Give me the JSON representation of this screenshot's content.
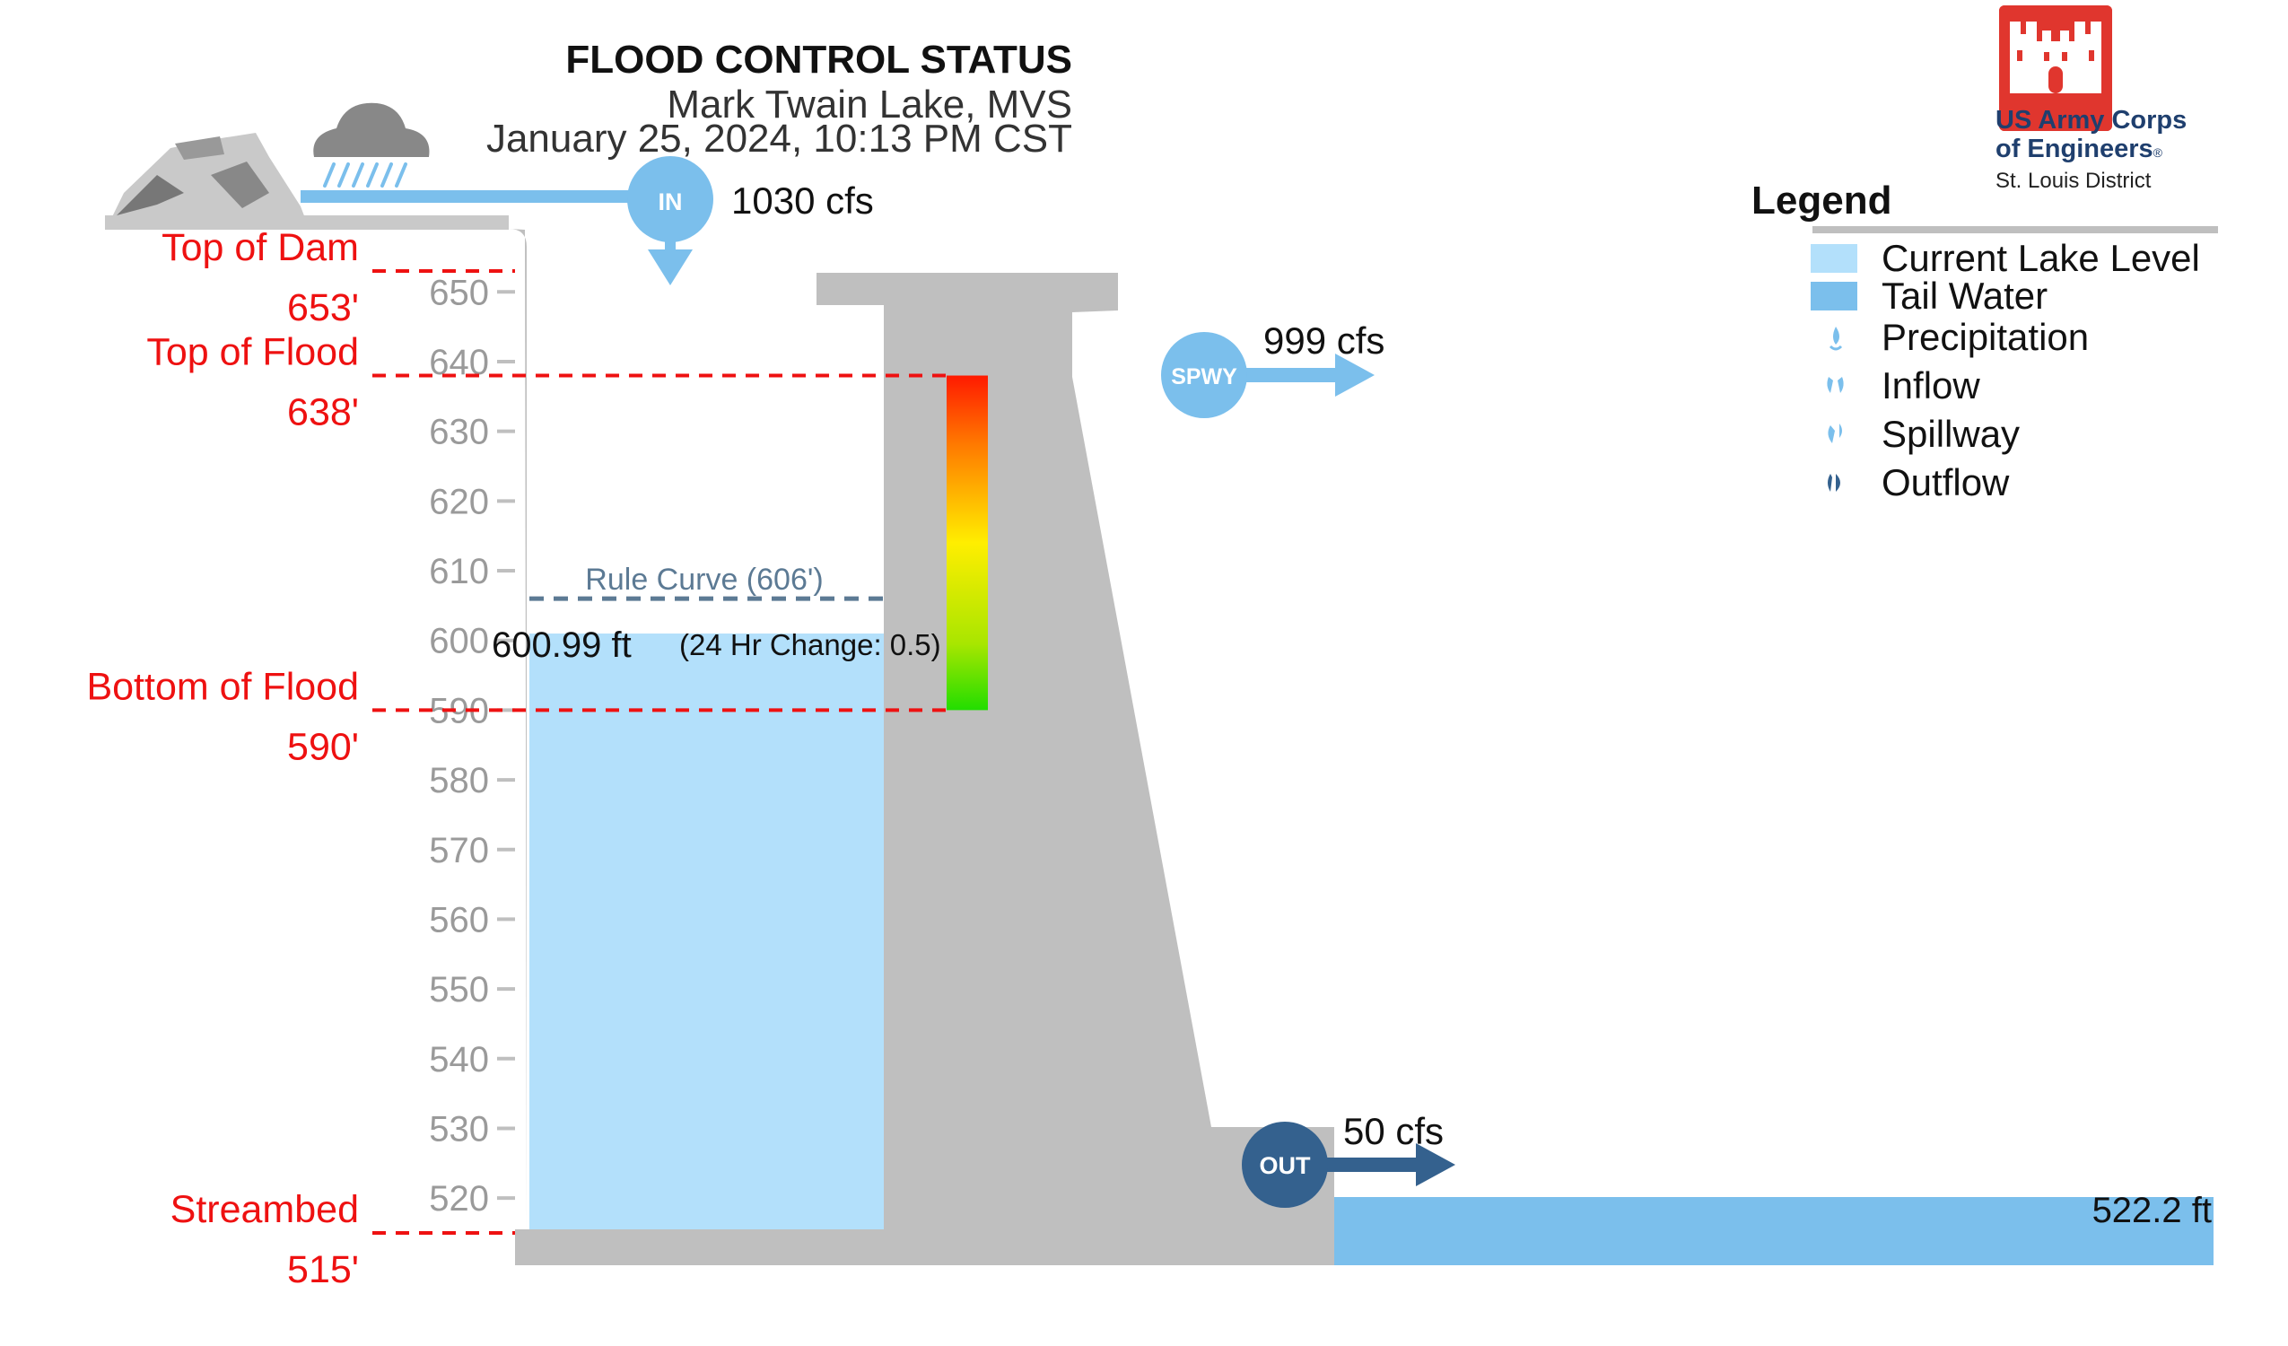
{
  "header": {
    "title": "FLOOD CONTROL STATUS",
    "location": "Mark Twain Lake, MVS",
    "datetime": "January 25, 2024, 10:13 PM CST"
  },
  "logo": {
    "line1": "US Army Corps",
    "line2": "of Engineers",
    "reg_mark": "®",
    "district": "St. Louis District",
    "color": "#e0362e"
  },
  "legend": {
    "title": "Legend",
    "items": [
      {
        "label": "Current Lake Level",
        "icon": "swatch-light-blue",
        "color": "#b3e0fb"
      },
      {
        "label": "Tail Water",
        "icon": "swatch-blue",
        "color": "#7bbfec"
      },
      {
        "label": "Precipitation",
        "icon": "raindrop-icon",
        "color": "#7bbfec"
      },
      {
        "label": "Inflow",
        "icon": "inflow-icon",
        "color": "#7bbfec"
      },
      {
        "label": "Spillway",
        "icon": "spillway-icon",
        "color": "#7bbfec"
      },
      {
        "label": "Outflow",
        "icon": "outflow-icon",
        "color": "#34618e"
      }
    ]
  },
  "scale": {
    "min_elev": 515,
    "max_elev": 653,
    "ticks": [
      520,
      530,
      540,
      550,
      560,
      570,
      580,
      590,
      600,
      610,
      620,
      630,
      640,
      650
    ]
  },
  "reference_lines": [
    {
      "name": "Top of Dam",
      "elevation": 653,
      "label": "Top of Dam",
      "value_label": "653'"
    },
    {
      "name": "Top of Flood",
      "elevation": 638,
      "label": "Top of Flood",
      "value_label": "638'"
    },
    {
      "name": "Bottom of Flood",
      "elevation": 590,
      "label": "Bottom of Flood",
      "value_label": "590'"
    },
    {
      "name": "Streambed",
      "elevation": 515,
      "label": "Streambed",
      "value_label": "515'"
    }
  ],
  "lake": {
    "elevation": 600.99,
    "level_label": "600.99 ft",
    "change_label": "(24 Hr Change: 0.5)",
    "color": "#b3e0fb"
  },
  "rule_curve": {
    "elevation": 606,
    "label": "Rule Curve (606')",
    "color": "#5c7a94"
  },
  "tailwater": {
    "elevation": 522.2,
    "label": "522.2 ft",
    "color": "#7bbfec"
  },
  "flows": {
    "inflow": {
      "badge": "IN",
      "value": "1030 cfs",
      "color": "#7bbfec"
    },
    "spillway": {
      "badge": "SPWY",
      "value": "999 cfs",
      "color": "#7bbfec"
    },
    "outflow": {
      "badge": "OUT",
      "value": "50 cfs",
      "color": "#34618e"
    }
  },
  "colors": {
    "dam": "#bfbfbf",
    "reference_line": "#ee1111",
    "tick_text": "#9a9a9a"
  }
}
